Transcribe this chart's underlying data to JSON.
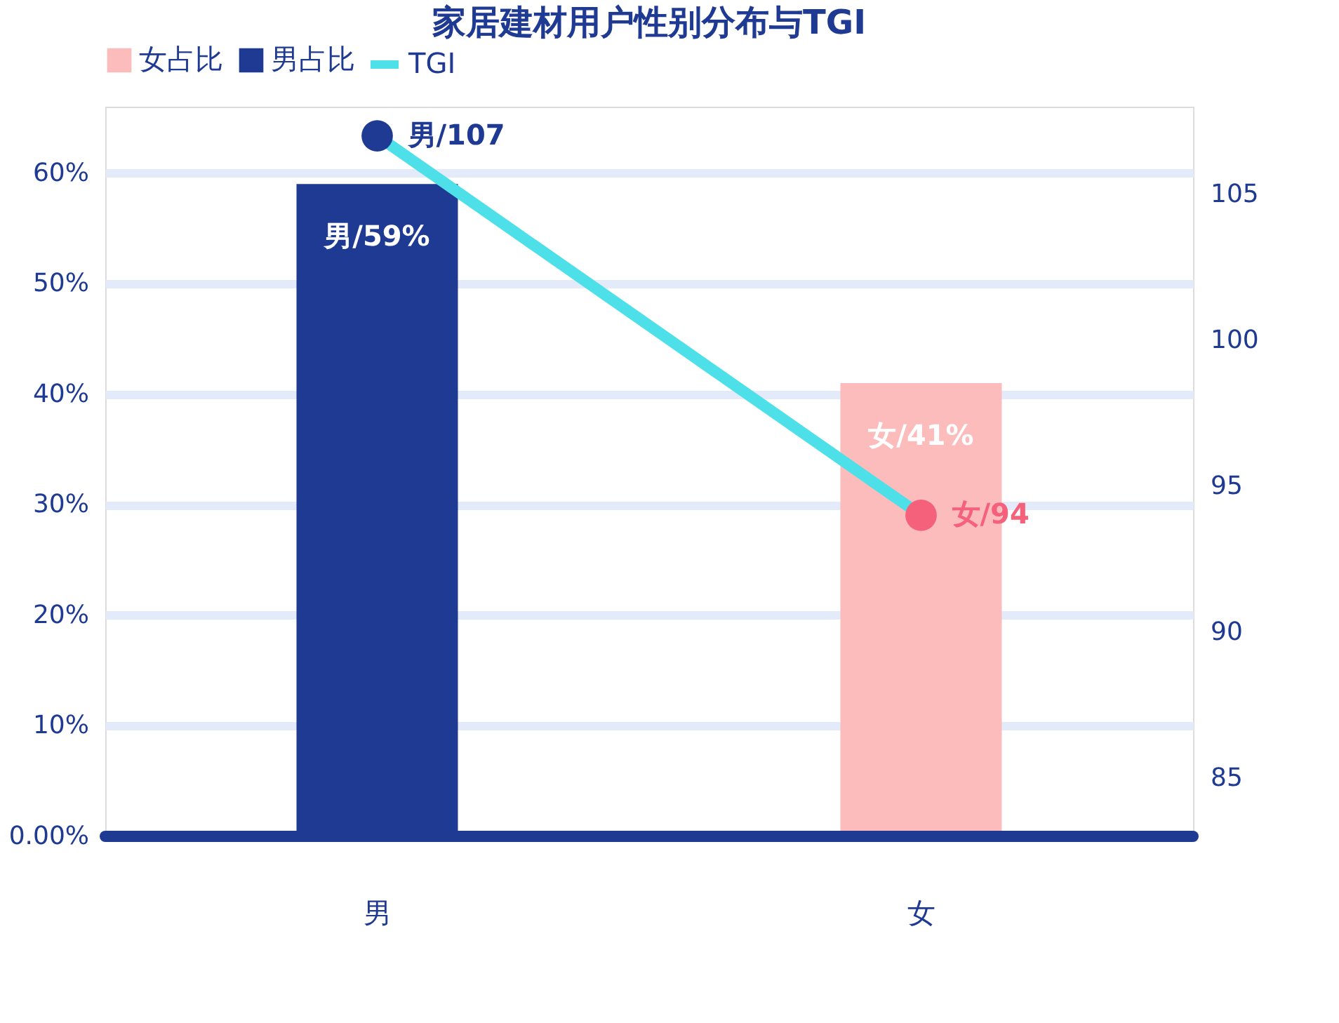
{
  "chart_data": {
    "type": "bar",
    "title": "家居建材用户性别分布与TGI",
    "categories": [
      "男",
      "女"
    ],
    "series": [
      {
        "name": "女占比",
        "color": "#fcbcbc",
        "values": [
          null,
          41
        ],
        "value_labels": [
          null,
          "女/41%"
        ]
      },
      {
        "name": "男占比",
        "color": "#1f3a93",
        "values": [
          59,
          null
        ],
        "value_labels": [
          "男/59%",
          null
        ]
      },
      {
        "name": "TGI",
        "type": "line",
        "axis": "y2",
        "color": "#4de0e8",
        "colors": [
          "#1f3a93",
          "#f5617a"
        ],
        "values": [
          107,
          94
        ],
        "value_labels": [
          "男/107",
          "女/94"
        ]
      }
    ],
    "ylim": [
      0,
      66
    ],
    "yticks": [
      {
        "value": 0,
        "label": "0.00%"
      },
      {
        "value": 10,
        "label": "10%"
      },
      {
        "value": 20,
        "label": "20%"
      },
      {
        "value": 30,
        "label": "30%"
      },
      {
        "value": 40,
        "label": "40%"
      },
      {
        "value": 50,
        "label": "50%"
      },
      {
        "value": 60,
        "label": "60%"
      }
    ],
    "y2lim": [
      83,
      108
    ],
    "y2ticks": [
      85,
      90,
      95,
      100,
      105
    ],
    "grid": "y",
    "legend": "top",
    "marker": "circle"
  }
}
